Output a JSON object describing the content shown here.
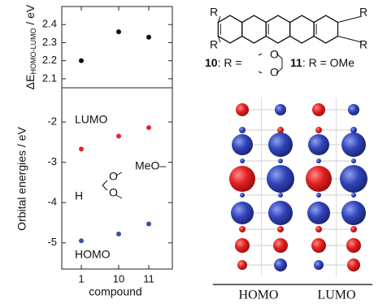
{
  "chart_data": [
    {
      "type": "scatter",
      "y_label": {
        "main": "ΔE",
        "sub": "HOMO-LUMO",
        "unit": " / eV"
      },
      "series": [
        {
          "color": "#111111",
          "values": [
            2.2,
            2.36,
            2.33
          ]
        }
      ],
      "ylim": [
        2.05,
        2.5
      ],
      "yticks": [
        2.1,
        2.2,
        2.3,
        2.4
      ]
    },
    {
      "type": "scatter",
      "y_label": "Orbital energies / eV",
      "x_label": "compound",
      "categories": [
        "1",
        "10",
        "11"
      ],
      "series": [
        {
          "name": "LUMO",
          "color": "#e3262c",
          "values": [
            -2.67,
            -2.35,
            -2.14
          ]
        },
        {
          "name": "HOMO",
          "color": "#3b52a3",
          "values": [
            -4.95,
            -4.78,
            -4.53
          ]
        }
      ],
      "ylim": [
        -5.65,
        -1.15
      ],
      "yticks": [
        -2,
        -3,
        -4,
        -5
      ],
      "annotations": [
        "H",
        "MeO–"
      ]
    }
  ],
  "structure": {
    "substituent": "R",
    "oxygen": "O",
    "legend": [
      {
        "number": "10",
        "text": ": R = "
      },
      {
        "number": "11",
        "text": ": R = OMe"
      }
    ]
  },
  "orbitals": {
    "labels": [
      "HOMO",
      "LUMO"
    ]
  }
}
